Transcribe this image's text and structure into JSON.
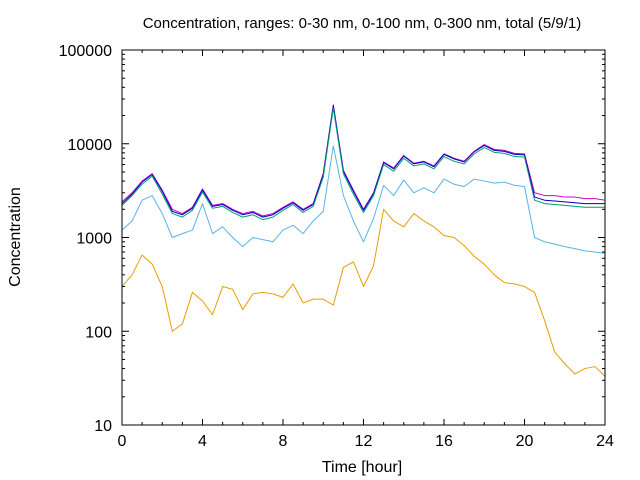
{
  "chart_data": {
    "type": "line",
    "title": "Concentration, ranges: 0-30 nm, 0-100 nm, 0-300 nm, total (5/9/1)",
    "xlabel": "Time [hour]",
    "ylabel": "Concentration",
    "xlim": [
      0,
      24
    ],
    "ylim": [
      10,
      100000
    ],
    "yscale": "log",
    "grid": false,
    "legend": "none",
    "x_ticks": [
      0,
      4,
      8,
      12,
      16,
      20,
      24
    ],
    "x_tick_labels": [
      "0",
      "4",
      "8",
      "12",
      "16",
      "20",
      "24"
    ],
    "y_ticks": [
      10,
      100,
      1000,
      10000,
      100000
    ],
    "y_tick_labels": [
      "10",
      "100",
      "1000",
      "10000",
      "100000"
    ],
    "x": [
      0,
      0.5,
      1,
      1.5,
      2,
      2.5,
      3,
      3.5,
      4,
      4.5,
      5,
      5.5,
      6,
      6.5,
      7,
      7.5,
      8,
      8.5,
      9,
      9.5,
      10,
      10.5,
      11,
      11.5,
      12,
      12.5,
      13,
      13.5,
      14,
      14.5,
      15,
      15.5,
      16,
      16.5,
      17,
      17.5,
      18,
      18.5,
      19,
      19.5,
      20,
      20.5,
      21,
      21.5,
      22,
      22.5,
      23,
      23.5,
      24
    ],
    "series": [
      {
        "color": "#cc00cc",
        "values": [
          2400,
          3000,
          4000,
          4800,
          3200,
          2000,
          1800,
          2100,
          3300,
          2200,
          2300,
          2000,
          1800,
          1900,
          1700,
          1800,
          2100,
          2400,
          2000,
          2300,
          4800,
          26000,
          5200,
          3200,
          2000,
          3000,
          6400,
          5500,
          7500,
          6200,
          6500,
          5800,
          7800,
          7000,
          6500,
          8300,
          9800,
          8700,
          8500,
          7900,
          7800,
          3000,
          2800,
          2800,
          2700,
          2700,
          2600,
          2600,
          2500
        ]
      },
      {
        "color": "#0000cc",
        "values": [
          2300,
          2900,
          3900,
          4700,
          3100,
          1900,
          1750,
          2050,
          3200,
          2150,
          2250,
          1950,
          1750,
          1850,
          1650,
          1750,
          2050,
          2350,
          1950,
          2250,
          4700,
          25500,
          5100,
          3100,
          1950,
          2950,
          6300,
          5400,
          7400,
          6100,
          6400,
          5700,
          7700,
          6900,
          6400,
          8200,
          9600,
          8500,
          8300,
          7700,
          7600,
          2700,
          2500,
          2450,
          2400,
          2350,
          2300,
          2300,
          2300
        ]
      },
      {
        "color": "#009e73",
        "values": [
          2200,
          2800,
          3700,
          4500,
          2900,
          1800,
          1650,
          1950,
          3050,
          2050,
          2150,
          1850,
          1650,
          1750,
          1550,
          1650,
          1950,
          2250,
          1850,
          2150,
          4400,
          24000,
          4800,
          2900,
          1850,
          2800,
          6000,
          5100,
          7000,
          5800,
          6100,
          5400,
          7300,
          6500,
          6100,
          7800,
          9100,
          8100,
          7900,
          7300,
          7200,
          2500,
          2300,
          2250,
          2200,
          2150,
          2100,
          2100,
          2100
        ]
      },
      {
        "color": "#56b4e9",
        "values": [
          1200,
          1500,
          2500,
          2800,
          1800,
          1000,
          1100,
          1200,
          2300,
          1100,
          1300,
          1000,
          800,
          1000,
          950,
          900,
          1200,
          1350,
          1100,
          1500,
          1900,
          9500,
          2800,
          1500,
          900,
          1600,
          3600,
          2800,
          4100,
          3000,
          3400,
          3000,
          4200,
          3700,
          3500,
          4200,
          4000,
          3800,
          3900,
          3600,
          3500,
          1000,
          900,
          850,
          800,
          760,
          720,
          700,
          680
        ]
      },
      {
        "color": "#e69f00",
        "values": [
          300,
          400,
          650,
          520,
          300,
          100,
          120,
          260,
          210,
          150,
          300,
          280,
          170,
          250,
          260,
          250,
          230,
          320,
          200,
          220,
          220,
          190,
          480,
          550,
          300,
          500,
          2000,
          1500,
          1300,
          1800,
          1500,
          1300,
          1050,
          1000,
          820,
          630,
          520,
          400,
          330,
          320,
          300,
          260,
          130,
          60,
          45,
          35,
          40,
          42,
          33
        ]
      }
    ]
  }
}
